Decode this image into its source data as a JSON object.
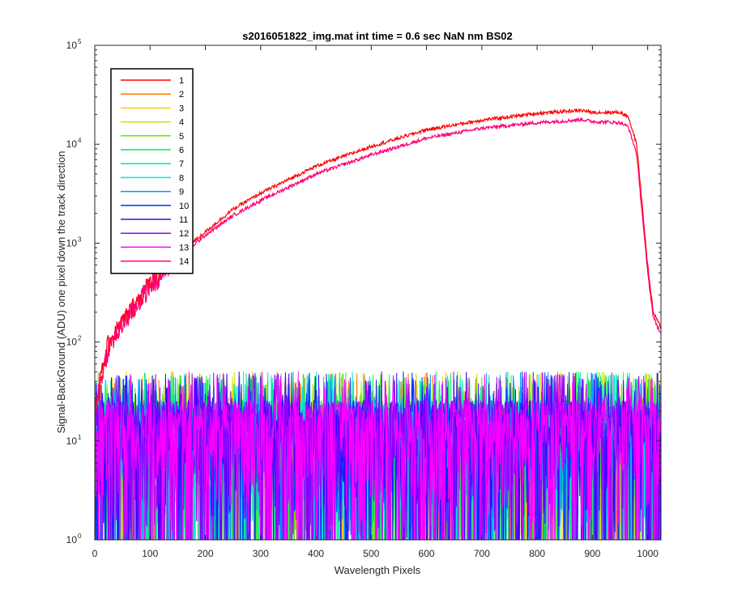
{
  "chart_data": {
    "type": "line",
    "title": "s2016051822_img.mat int time = 0.6 sec  NaN nm BS02",
    "xlabel": "Wavelength Pixels",
    "ylabel": "Signal-BackGround (ADU) one pixel down the track direction",
    "xlim": [
      0,
      1024
    ],
    "ylim": [
      1,
      100000
    ],
    "yscale": "log",
    "grid": false,
    "legend_position": "top-left",
    "x_ticks": [
      "0",
      "100",
      "200",
      "300",
      "400",
      "500",
      "600",
      "700",
      "800",
      "900",
      "1000"
    ],
    "y_ticks": [
      {
        "base": "10",
        "exp": "0"
      },
      {
        "base": "10",
        "exp": "1"
      },
      {
        "base": "10",
        "exp": "2"
      },
      {
        "base": "10",
        "exp": "3"
      },
      {
        "base": "10",
        "exp": "4"
      },
      {
        "base": "10",
        "exp": "5"
      }
    ],
    "series": [
      {
        "name": "1",
        "color": "#ff0000",
        "kind": "signal",
        "x": [
          0,
          10,
          25,
          50,
          75,
          100,
          150,
          200,
          250,
          300,
          400,
          500,
          600,
          700,
          800,
          850,
          880,
          900,
          950,
          965,
          980,
          1000,
          1010,
          1024
        ],
        "y": [
          20,
          40,
          100,
          160,
          250,
          400,
          750,
          1300,
          2200,
          3200,
          6000,
          9500,
          14000,
          17500,
          20500,
          21500,
          22000,
          21000,
          21000,
          19000,
          10000,
          600,
          200,
          140
        ]
      },
      {
        "name": "2",
        "color": "#ff7700",
        "kind": "noise",
        "x": [
          0,
          1024
        ],
        "y": [
          12,
          12
        ]
      },
      {
        "name": "3",
        "color": "#ffcc00",
        "kind": "noise",
        "x": [
          0,
          1024
        ],
        "y": [
          12,
          12
        ]
      },
      {
        "name": "4",
        "color": "#bbee00",
        "kind": "noise",
        "x": [
          0,
          1024
        ],
        "y": [
          12,
          12
        ]
      },
      {
        "name": "5",
        "color": "#55ee00",
        "kind": "noise",
        "x": [
          0,
          1024
        ],
        "y": [
          12,
          12
        ]
      },
      {
        "name": "6",
        "color": "#00ee44",
        "kind": "noise",
        "x": [
          0,
          1024
        ],
        "y": [
          12,
          12
        ]
      },
      {
        "name": "7",
        "color": "#00e8a0",
        "kind": "noise",
        "x": [
          0,
          1024
        ],
        "y": [
          12,
          12
        ]
      },
      {
        "name": "8",
        "color": "#00e8e0",
        "kind": "noise",
        "x": [
          0,
          1024
        ],
        "y": [
          12,
          12
        ]
      },
      {
        "name": "9",
        "color": "#0099ff",
        "kind": "noise",
        "x": [
          0,
          1024
        ],
        "y": [
          12,
          12
        ]
      },
      {
        "name": "10",
        "color": "#0033ff",
        "kind": "noise",
        "x": [
          0,
          1024
        ],
        "y": [
          12,
          12
        ]
      },
      {
        "name": "11",
        "color": "#4400ff",
        "kind": "noise",
        "x": [
          0,
          1024
        ],
        "y": [
          12,
          12
        ]
      },
      {
        "name": "12",
        "color": "#9900ff",
        "kind": "noise",
        "x": [
          0,
          1024
        ],
        "y": [
          12,
          12
        ]
      },
      {
        "name": "13",
        "color": "#ff00ff",
        "kind": "noise",
        "x": [
          0,
          1024
        ],
        "y": [
          12,
          12
        ]
      },
      {
        "name": "14",
        "color": "#ff0077",
        "kind": "signal",
        "x": [
          0,
          10,
          25,
          50,
          75,
          100,
          150,
          200,
          250,
          300,
          400,
          500,
          600,
          700,
          800,
          850,
          880,
          900,
          950,
          965,
          980,
          1000,
          1010,
          1024
        ],
        "y": [
          20,
          40,
          90,
          150,
          240,
          380,
          700,
          1200,
          1900,
          2700,
          5000,
          7800,
          11500,
          14500,
          16500,
          17200,
          17800,
          17000,
          16500,
          15000,
          8000,
          500,
          180,
          120
        ]
      }
    ]
  }
}
